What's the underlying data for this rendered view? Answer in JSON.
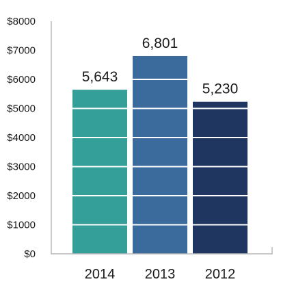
{
  "chart_data": {
    "type": "bar",
    "title": "",
    "xlabel": "",
    "ylabel": "",
    "categories": [
      "2014",
      "2013",
      "2012"
    ],
    "values": [
      5643,
      6801,
      5230
    ],
    "value_labels": [
      "5,643",
      "6,801",
      "5,230"
    ],
    "ylim": [
      0,
      8000
    ],
    "yticks": [
      0,
      1000,
      2000,
      3000,
      4000,
      5000,
      6000,
      7000,
      8000
    ],
    "ytick_labels": [
      "$0",
      "$1000",
      "$2000",
      "$3000",
      "$4000",
      "$5000",
      "$6000",
      "$7000",
      "$8000"
    ],
    "grid": "white lines across bars at each y tick",
    "legend": "none",
    "colors": [
      "#349e98",
      "#3b6b9c",
      "#1e3660"
    ]
  }
}
